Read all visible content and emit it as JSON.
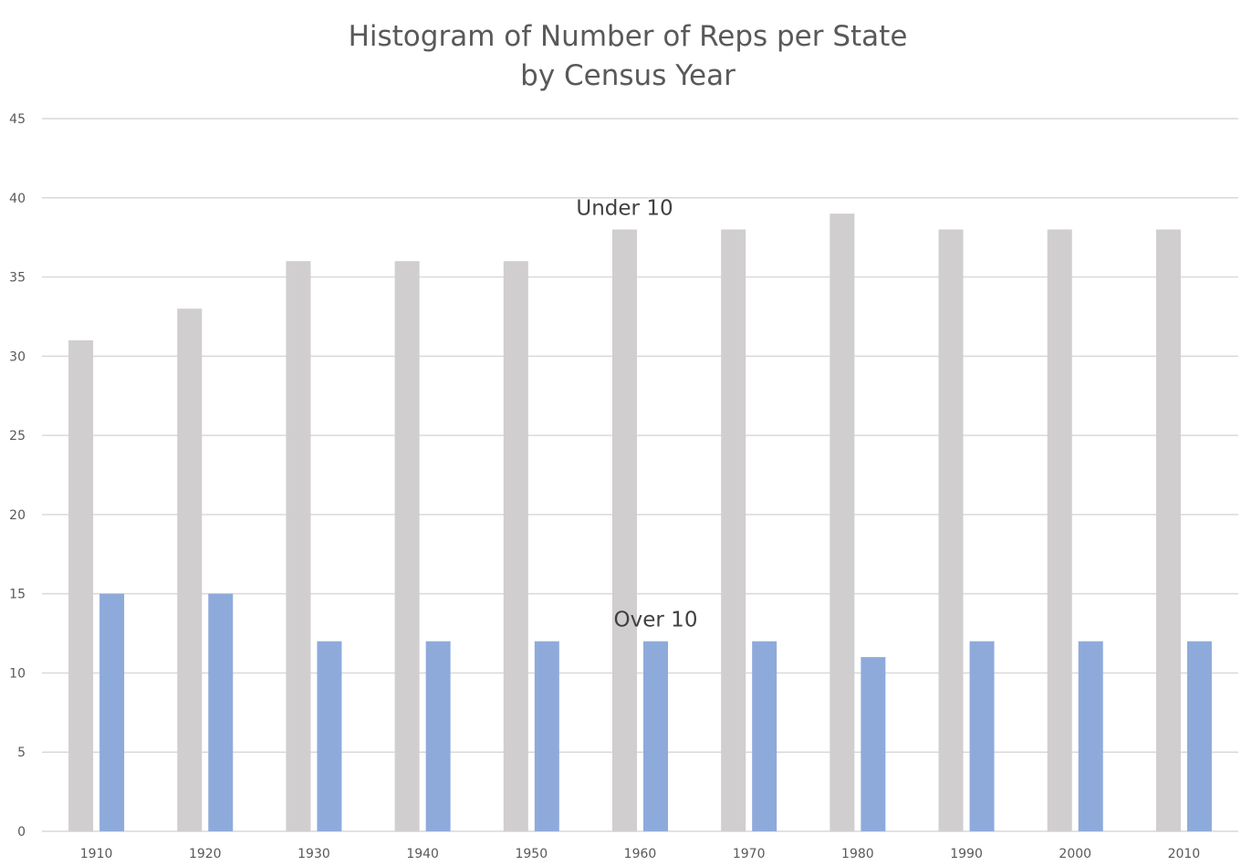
{
  "chart_data": {
    "type": "bar",
    "title_lines": [
      "Histogram of Number of Reps per State",
      "by Census Year"
    ],
    "categories": [
      "1910",
      "1920",
      "1930",
      "1940",
      "1950",
      "1960",
      "1970",
      "1980",
      "1990",
      "2000",
      "2010"
    ],
    "series": [
      {
        "name": "Under 10",
        "color": "#d0cece",
        "values": [
          31,
          33,
          36,
          36,
          36,
          38,
          38,
          39,
          38,
          38,
          38
        ]
      },
      {
        "name": "Over 10",
        "color": "#8eaadb",
        "values": [
          15,
          15,
          12,
          12,
          12,
          12,
          12,
          11,
          12,
          12,
          12
        ]
      }
    ],
    "ylim": [
      0,
      45
    ],
    "y_ticks": [
      0,
      5,
      10,
      15,
      20,
      25,
      30,
      35,
      40,
      45
    ],
    "grid": true,
    "legend": "none",
    "annotations": [
      {
        "text": "Under 10",
        "series": "Under 10",
        "near_category": "1960"
      },
      {
        "text": "Over 10",
        "series": "Over 10",
        "near_category": "1960"
      }
    ]
  }
}
